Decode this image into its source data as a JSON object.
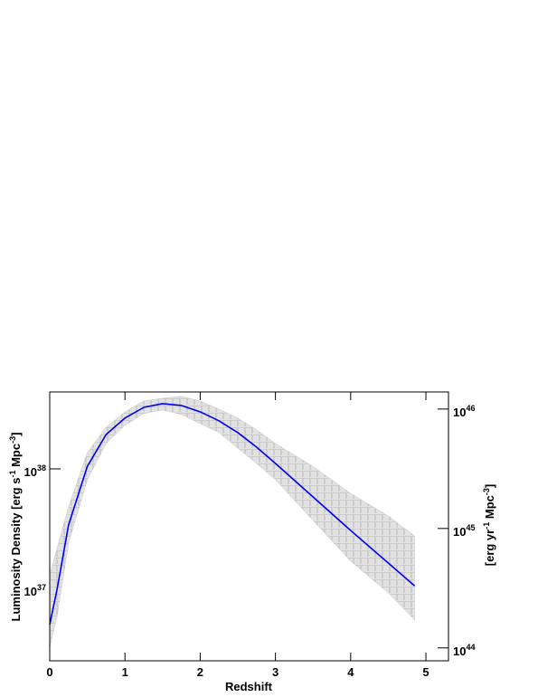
{
  "chart_data": {
    "type": "line",
    "xlabel": "Redshift",
    "ylabel": [
      "Luminosity Density [erg s",
      "-1",
      " Mpc",
      "-3",
      "]"
    ],
    "y2label": [
      "[erg yr",
      "-1",
      " Mpc",
      "-3",
      "]"
    ],
    "x": [
      0,
      0.1,
      0.25,
      0.5,
      0.75,
      1,
      1.25,
      1.5,
      1.75,
      2,
      2.25,
      2.5,
      2.75,
      3,
      3.5,
      4,
      4.5,
      4.85
    ],
    "series": [
      {
        "color": "#0000ee",
        "values": [
          4.98e+36,
          1e+37,
          3.39e+37,
          1.05e+38,
          1.94e+38,
          2.66e+38,
          3.27e+38,
          3.51e+38,
          3.39e+38,
          3e+38,
          2.52e+38,
          2.01e+38,
          1.52e+38,
          1.11e+38,
          5.82e+37,
          3.05e+37,
          1.63e+37,
          1.05e+37
        ],
        "band_color": "#c8c8c8",
        "upper": [
          1.3e+37,
          2.19e+37,
          4.81e+37,
          1.37e+38,
          2.23e+38,
          3e+38,
          3.7e+38,
          3.9e+38,
          4.04e+38,
          3.7e+38,
          3.16e+38,
          2.66e+38,
          2.12e+38,
          1.63e+38,
          1.05e+38,
          6.24e+37,
          4.04e+37,
          2.75e+37
        ],
        "lower": [
          3.22e+36,
          5.93e+36,
          2.39e+37,
          8.1e+37,
          1.63e+38,
          2.31e+38,
          2.9e+38,
          3.11e+38,
          2.85e+38,
          2.39e+38,
          2.01e+38,
          1.49e+38,
          1.11e+38,
          8.1e+37,
          3.7e+37,
          1.69e+37,
          9.17e+36,
          5.43e+36
        ]
      }
    ],
    "xlim": [
      0,
      5.3
    ],
    "xticks": [
      0,
      1,
      2,
      3,
      4,
      5
    ],
    "ylim": [
      2.48e+36,
      4.4e+38
    ],
    "ylog": true,
    "yticks": [
      {
        "value": 1e+37,
        "label": "10",
        "exponent": "37"
      },
      {
        "value": 1e+38,
        "label": "10",
        "exponent": "38"
      }
    ],
    "y2lim": [
      7.8e+43,
      1.39e+46
    ],
    "y2log": true,
    "y2ticks": [
      {
        "value": 1e+44,
        "label": "10",
        "exponent": "44"
      },
      {
        "value": 1e+45,
        "label": "10",
        "exponent": "45"
      },
      {
        "value": 1e+46,
        "label": "10",
        "exponent": "46"
      }
    ]
  }
}
